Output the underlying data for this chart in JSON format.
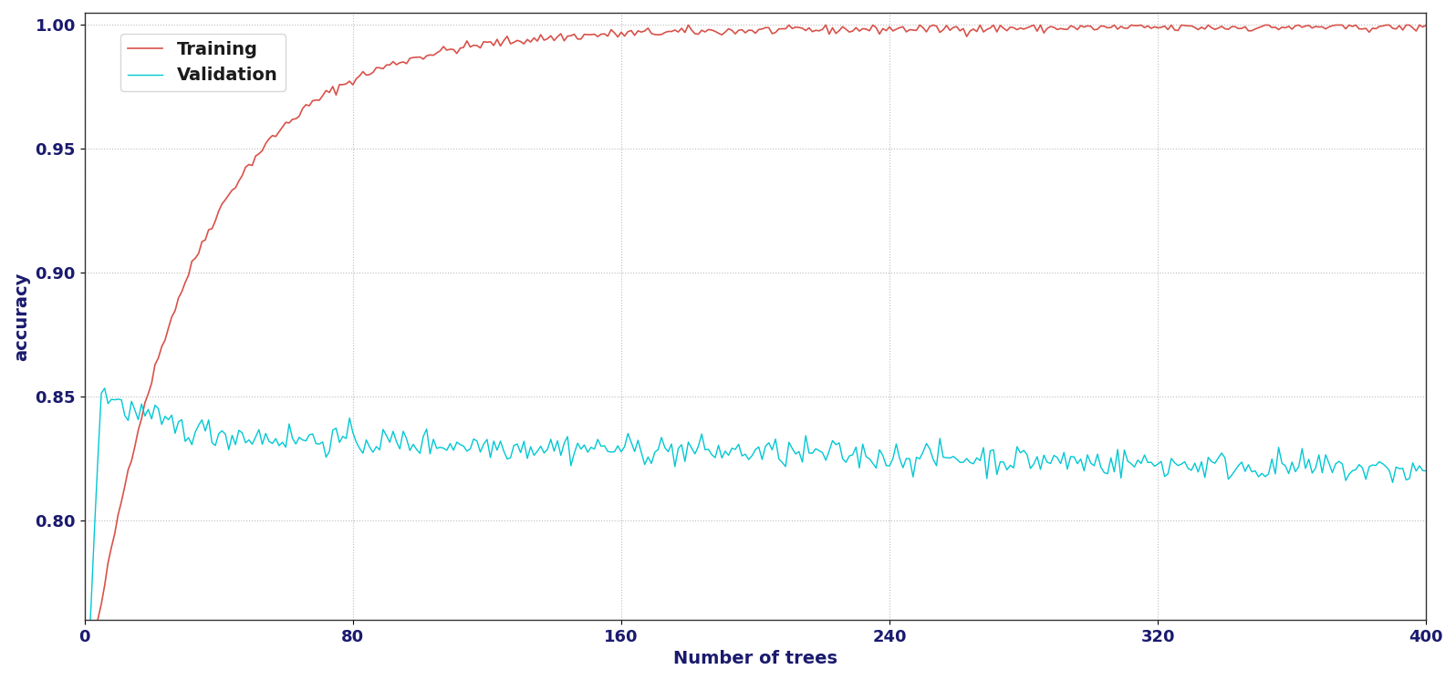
{
  "title": "",
  "xlabel": "Number of trees",
  "ylabel": "accuracy",
  "xlim": [
    0,
    400
  ],
  "ylim": [
    0.76,
    1.005
  ],
  "xticks": [
    0,
    80,
    160,
    240,
    320,
    400
  ],
  "yticks": [
    0.8,
    0.85,
    0.9,
    0.95,
    1.0
  ],
  "training_color": "#d9524a",
  "validation_color": "#00c8d4",
  "background_color": "#ffffff",
  "grid_color": "#aaaaaa",
  "legend_labels": [
    "Training",
    "Validation"
  ],
  "legend_fontsize": 14,
  "axis_label_fontsize": 14,
  "tick_fontsize": 13,
  "n_trees": 400,
  "seed": 42
}
